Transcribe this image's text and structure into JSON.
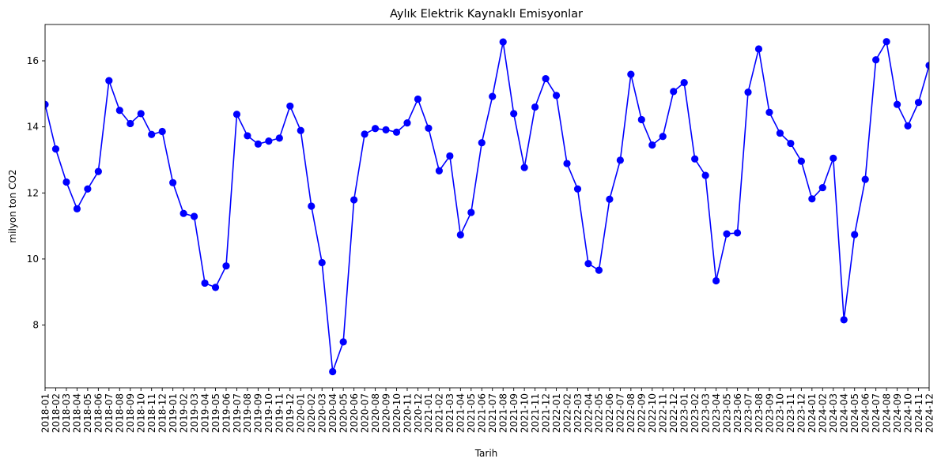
{
  "chart_data": {
    "type": "line",
    "title": "Aylık Elektrik Kaynaklı Emisyonlar",
    "xlabel": "Tarih",
    "ylabel": "milyon ton CO2",
    "ylim": [
      6.1,
      17.1
    ],
    "yticks": [
      8,
      10,
      12,
      14,
      16
    ],
    "grid": false,
    "color": "#0000ff",
    "categories": [
      "2018-01",
      "2018-02",
      "2018-03",
      "2018-04",
      "2018-05",
      "2018-06",
      "2018-07",
      "2018-08",
      "2018-09",
      "2018-10",
      "2018-11",
      "2018-12",
      "2019-01",
      "2019-02",
      "2019-03",
      "2019-04",
      "2019-05",
      "2019-06",
      "2019-07",
      "2019-08",
      "2019-09",
      "2019-10",
      "2019-11",
      "2019-12",
      "2020-01",
      "2020-02",
      "2020-03",
      "2020-04",
      "2020-05",
      "2020-06",
      "2020-07",
      "2020-08",
      "2020-09",
      "2020-10",
      "2020-11",
      "2020-12",
      "2021-01",
      "2021-02",
      "2021-03",
      "2021-04",
      "2021-05",
      "2021-06",
      "2021-07",
      "2021-08",
      "2021-09",
      "2021-10",
      "2021-11",
      "2021-12",
      "2022-01",
      "2022-02",
      "2022-03",
      "2022-04",
      "2022-05",
      "2022-06",
      "2022-07",
      "2022-08",
      "2022-09",
      "2022-10",
      "2022-11",
      "2022-12",
      "2023-01",
      "2023-02",
      "2023-03",
      "2023-04",
      "2023-05",
      "2023-06",
      "2023-07",
      "2023-08",
      "2023-09",
      "2023-10",
      "2023-11",
      "2023-12",
      "2024-01",
      "2024-02",
      "2024-03",
      "2024-04",
      "2024-05",
      "2024-06",
      "2024-07",
      "2024-08",
      "2024-09",
      "2024-10",
      "2024-11",
      "2024-12"
    ],
    "values": [
      14.68,
      13.33,
      12.33,
      11.52,
      12.12,
      12.65,
      15.4,
      14.5,
      14.1,
      14.4,
      13.77,
      13.86,
      12.31,
      11.38,
      11.29,
      9.27,
      9.14,
      9.79,
      14.38,
      13.73,
      13.48,
      13.57,
      13.66,
      14.63,
      13.89,
      11.6,
      9.89,
      6.59,
      7.49,
      11.79,
      13.78,
      13.95,
      13.91,
      13.84,
      14.12,
      14.84,
      13.96,
      12.67,
      13.12,
      10.73,
      11.41,
      13.52,
      14.92,
      16.57,
      14.4,
      12.77,
      14.6,
      15.46,
      14.95,
      12.89,
      12.12,
      9.86,
      9.66,
      11.81,
      12.99,
      15.59,
      14.22,
      13.45,
      13.71,
      15.07,
      15.34,
      13.03,
      12.53,
      9.34,
      10.76,
      10.79,
      15.05,
      16.36,
      14.44,
      13.81,
      13.5,
      12.96,
      11.82,
      12.16,
      13.05,
      8.16,
      10.74,
      12.41,
      16.03,
      16.58,
      14.68,
      14.03,
      14.74,
      15.86
    ]
  }
}
